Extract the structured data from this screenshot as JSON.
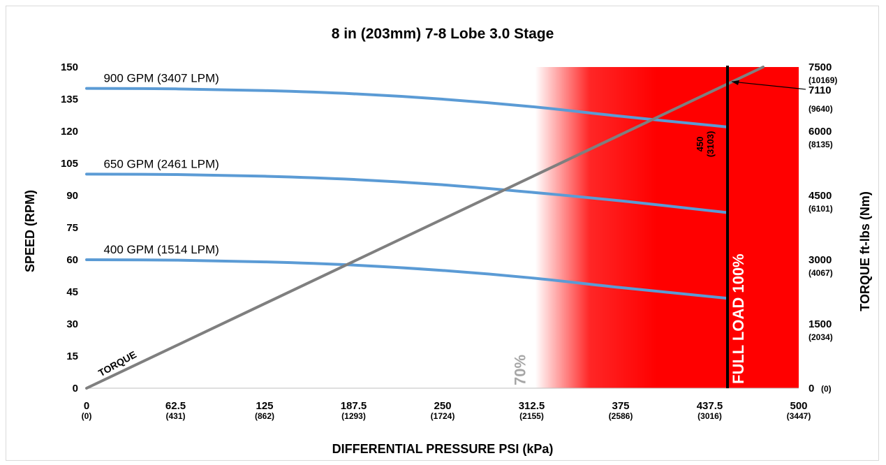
{
  "chart_data": {
    "type": "line",
    "title": "8 in (203mm) 7-8 Lobe 3.0 Stage",
    "xlabel": "DIFFERENTIAL PRESSURE PSI (kPa)",
    "ylabel": "SPEED (RPM)",
    "y2label": "TORQUE ft-lbs (Nm)",
    "xlim": [
      0,
      500
    ],
    "ylim": [
      0,
      150
    ],
    "y2lim": [
      0,
      7500
    ],
    "x_ticks": [
      {
        "value": 0,
        "label": "0",
        "sub": "(0)"
      },
      {
        "value": 62.5,
        "label": "62.5",
        "sub": "(431)"
      },
      {
        "value": 125,
        "label": "125",
        "sub": "(862)"
      },
      {
        "value": 187.5,
        "label": "187.5",
        "sub": "(1293)"
      },
      {
        "value": 250,
        "label": "250",
        "sub": "(1724)"
      },
      {
        "value": 312.5,
        "label": "312.5",
        "sub": "(2155)"
      },
      {
        "value": 375,
        "label": "375",
        "sub": "(2586)"
      },
      {
        "value": 437.5,
        "label": "437.5",
        "sub": "(3016)"
      },
      {
        "value": 500,
        "label": "500",
        "sub": "(3447)"
      }
    ],
    "y_ticks": [
      "0",
      "15",
      "30",
      "45",
      "60",
      "75",
      "90",
      "105",
      "120",
      "135",
      "150"
    ],
    "y2_ticks": [
      {
        "value": 0,
        "label": "0",
        "sub": "(0)"
      },
      {
        "value": 1500,
        "label": "1500",
        "sub": "(2034)"
      },
      {
        "value": 3000,
        "label": "3000",
        "sub": "(4067)"
      },
      {
        "value": 4500,
        "label": "4500",
        "sub": "(6101)"
      },
      {
        "value": 6000,
        "label": "6000",
        "sub": "(8135)"
      },
      {
        "value": 7500,
        "label": "7500",
        "sub": "(10169)"
      }
    ],
    "series": [
      {
        "name": "900 GPM (3407 LPM)",
        "color": "#5b9bd5",
        "x": [
          0,
          62.5,
          125,
          187.5,
          250,
          312.5,
          375,
          450
        ],
        "y": [
          140,
          139.8,
          139,
          137.5,
          135,
          131.5,
          127,
          122
        ]
      },
      {
        "name": "650 GPM (2461 LPM)",
        "color": "#5b9bd5",
        "x": [
          0,
          62.5,
          125,
          187.5,
          250,
          312.5,
          375,
          450
        ],
        "y": [
          100,
          99.8,
          99,
          97.5,
          95,
          91.5,
          87.5,
          82
        ]
      },
      {
        "name": "400 GPM (1514 LPM)",
        "color": "#5b9bd5",
        "x": [
          0,
          62.5,
          125,
          187.5,
          250,
          312.5,
          375,
          450
        ],
        "y": [
          60,
          59.8,
          59,
          57.5,
          55,
          51.5,
          47,
          42
        ]
      },
      {
        "name": "TORQUE",
        "color": "#7f7f7f",
        "axis": "y2",
        "x": [
          0,
          475
        ],
        "y": [
          0,
          7500
        ]
      }
    ],
    "annotations": {
      "zone_70_label": "70%",
      "full_load_label": "FULL LOAD 100%",
      "full_load_x": 450,
      "full_load_psi": "450",
      "full_load_kpa": "(3103)",
      "max_torque": "7110",
      "max_torque_nm": "(9640)",
      "zone_70_x": 315
    },
    "colors": {
      "zone": "#ff0000",
      "full_load_line": "#000000",
      "speed": "#5b9bd5",
      "torque": "#7f7f7f"
    }
  }
}
